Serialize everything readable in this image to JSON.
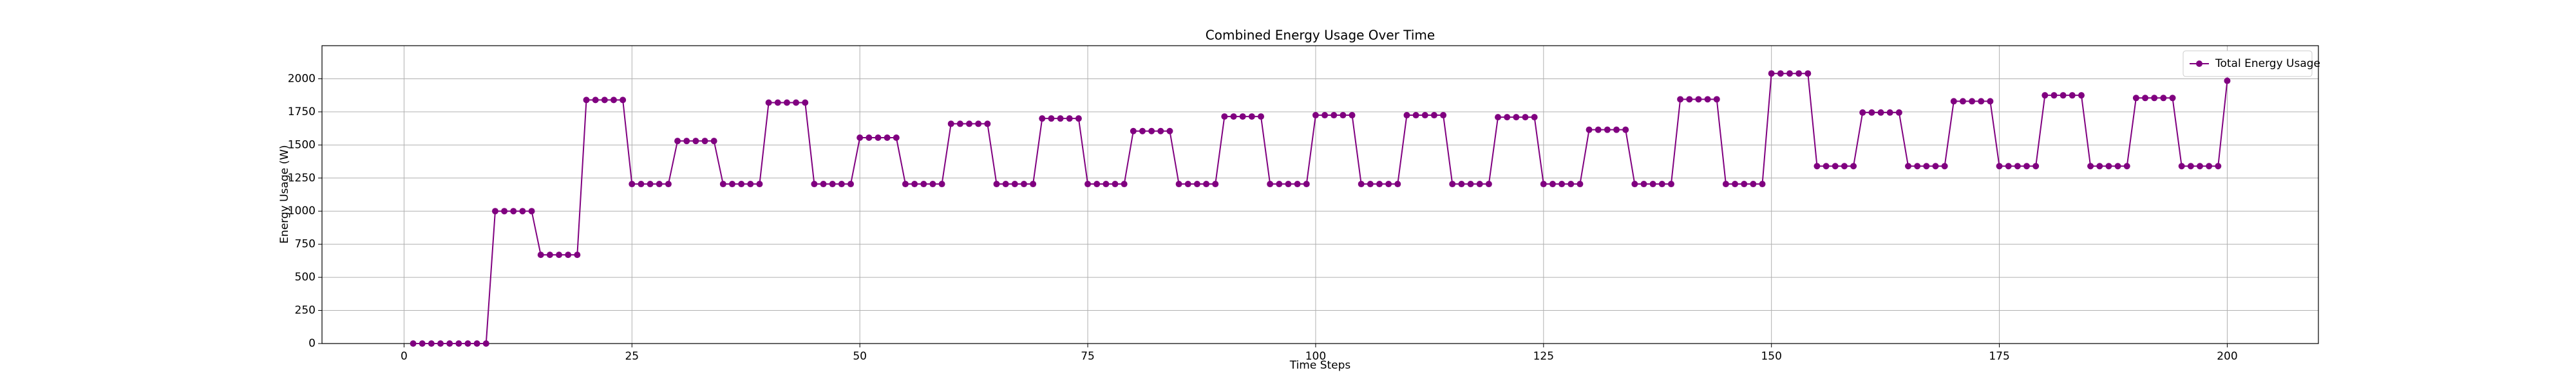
{
  "chart_data": {
    "type": "line",
    "title": "Combined Energy Usage Over Time",
    "xlabel": "Time Steps",
    "ylabel": "Energy Usage (W)",
    "x": [
      1,
      2,
      3,
      4,
      5,
      6,
      7,
      8,
      9,
      10,
      11,
      12,
      13,
      14,
      15,
      16,
      17,
      18,
      19,
      20,
      21,
      22,
      23,
      24,
      25,
      26,
      27,
      28,
      29,
      30,
      31,
      32,
      33,
      34,
      35,
      36,
      37,
      38,
      39,
      40,
      41,
      42,
      43,
      44,
      45,
      46,
      47,
      48,
      49,
      50,
      51,
      52,
      53,
      54,
      55,
      56,
      57,
      58,
      59,
      60,
      61,
      62,
      63,
      64,
      65,
      66,
      67,
      68,
      69,
      70,
      71,
      72,
      73,
      74,
      75,
      76,
      77,
      78,
      79,
      80,
      81,
      82,
      83,
      84,
      85,
      86,
      87,
      88,
      89,
      90,
      91,
      92,
      93,
      94,
      95,
      96,
      97,
      98,
      99,
      100,
      101,
      102,
      103,
      104,
      105,
      106,
      107,
      108,
      109,
      110,
      111,
      112,
      113,
      114,
      115,
      116,
      117,
      118,
      119,
      120,
      121,
      122,
      123,
      124,
      125,
      126,
      127,
      128,
      129,
      130,
      131,
      132,
      133,
      134,
      135,
      136,
      137,
      138,
      139,
      140,
      141,
      142,
      143,
      144,
      145,
      146,
      147,
      148,
      149,
      150,
      151,
      152,
      153,
      154,
      155,
      156,
      157,
      158,
      159,
      160,
      161,
      162,
      163,
      164,
      165,
      166,
      167,
      168,
      169,
      170,
      171,
      172,
      173,
      174,
      175,
      176,
      177,
      178,
      179,
      180,
      181,
      182,
      183,
      184,
      185,
      186,
      187,
      188,
      189,
      190,
      191,
      192,
      193,
      194,
      195,
      196,
      197,
      198,
      199,
      200
    ],
    "series": [
      {
        "name": "Total Energy Usage",
        "color": "#800080",
        "values": [
          0,
          0,
          0,
          0,
          0,
          0,
          0,
          0,
          0,
          1000,
          1000,
          1000,
          1000,
          1000,
          670,
          670,
          670,
          670,
          670,
          1840,
          1840,
          1840,
          1840,
          1840,
          1205,
          1205,
          1205,
          1205,
          1205,
          1530,
          1530,
          1530,
          1530,
          1530,
          1205,
          1205,
          1205,
          1205,
          1205,
          1820,
          1820,
          1820,
          1820,
          1820,
          1205,
          1205,
          1205,
          1205,
          1205,
          1555,
          1555,
          1555,
          1555,
          1555,
          1205,
          1205,
          1205,
          1205,
          1205,
          1660,
          1660,
          1660,
          1660,
          1660,
          1205,
          1205,
          1205,
          1205,
          1205,
          1700,
          1700,
          1700,
          1700,
          1700,
          1205,
          1205,
          1205,
          1205,
          1205,
          1605,
          1605,
          1605,
          1605,
          1605,
          1205,
          1205,
          1205,
          1205,
          1205,
          1715,
          1715,
          1715,
          1715,
          1715,
          1205,
          1205,
          1205,
          1205,
          1205,
          1725,
          1725,
          1725,
          1725,
          1725,
          1205,
          1205,
          1205,
          1205,
          1205,
          1725,
          1725,
          1725,
          1725,
          1725,
          1205,
          1205,
          1205,
          1205,
          1205,
          1710,
          1710,
          1710,
          1710,
          1710,
          1205,
          1205,
          1205,
          1205,
          1205,
          1615,
          1615,
          1615,
          1615,
          1615,
          1205,
          1205,
          1205,
          1205,
          1205,
          1845,
          1845,
          1845,
          1845,
          1845,
          1205,
          1205,
          1205,
          1205,
          1205,
          2040,
          2040,
          2040,
          2040,
          2040,
          1340,
          1340,
          1340,
          1340,
          1340,
          1745,
          1745,
          1745,
          1745,
          1745,
          1340,
          1340,
          1340,
          1340,
          1340,
          1830,
          1830,
          1830,
          1830,
          1830,
          1340,
          1340,
          1340,
          1340,
          1340,
          1875,
          1875,
          1875,
          1875,
          1875,
          1340,
          1340,
          1340,
          1340,
          1340,
          1855,
          1855,
          1855,
          1855,
          1855,
          1340,
          1340,
          1340,
          1340,
          1340,
          1985
        ]
      }
    ],
    "xlim": [
      -9,
      210
    ],
    "ylim": [
      0,
      2250
    ],
    "xticks": [
      0,
      25,
      50,
      75,
      100,
      125,
      150,
      175,
      200
    ],
    "yticks": [
      0,
      250,
      500,
      750,
      1000,
      1250,
      1500,
      1750,
      2000
    ],
    "grid": true,
    "legend": "upper right",
    "marker": "circle"
  }
}
